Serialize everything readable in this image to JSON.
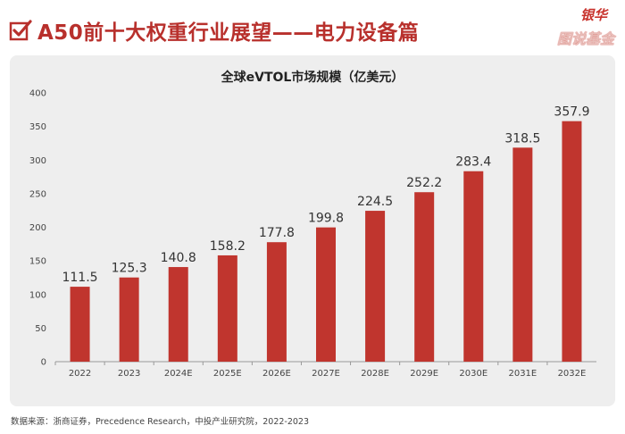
{
  "header": {
    "title": "A50前十大权重行业展望——电力设备篇",
    "logo_line1": "银华",
    "logo_line2": "图说基金"
  },
  "chart_data": {
    "type": "bar",
    "title": "全球eVTOL市场规模（亿美元）",
    "categories": [
      "2022",
      "2023",
      "2024E",
      "2025E",
      "2026E",
      "2027E",
      "2028E",
      "2029E",
      "2030E",
      "2031E",
      "2032E"
    ],
    "values": [
      111.5,
      125.3,
      140.8,
      158.2,
      177.8,
      199.8,
      224.5,
      252.2,
      283.4,
      318.5,
      357.9
    ],
    "value_labels": [
      "111.5",
      "125.3",
      "140.8",
      "158.2",
      "177.8",
      "199.8",
      "224.5",
      "252.2",
      "283.4",
      "318.5",
      "357.9"
    ],
    "y_ticks": [
      "0",
      "50",
      "100",
      "150",
      "200",
      "250",
      "300",
      "350",
      "400"
    ],
    "ylim": [
      0,
      400
    ],
    "xlabel": "",
    "ylabel": "",
    "grid": false,
    "bar_color": "#c0352e"
  },
  "source": "数据来源：浙商证券，Precedence Research，中投产业研究院，2022-2023",
  "colors": {
    "accent": "#b8302c",
    "panel": "#eeeeee"
  }
}
